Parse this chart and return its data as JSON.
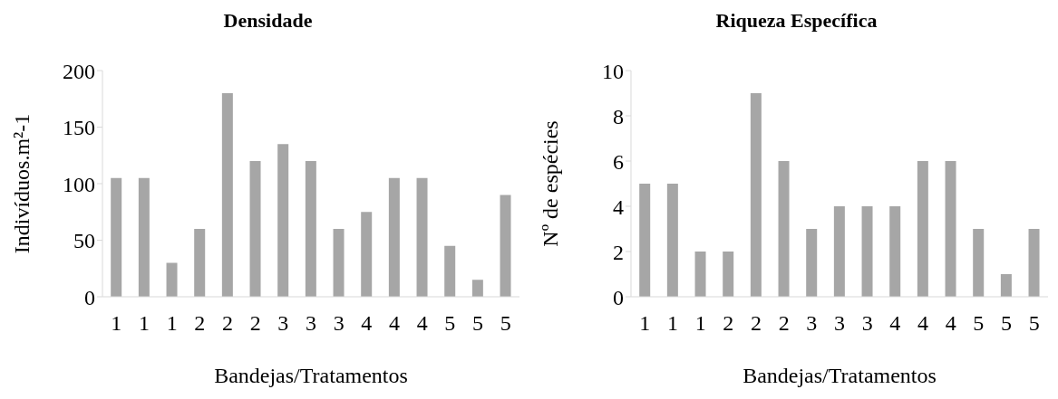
{
  "chart_data": [
    {
      "type": "bar",
      "title": "Densidade",
      "xlabel": "Bandejas/Tratamentos",
      "ylabel": "Indivíduos.m²-1",
      "categories": [
        "1",
        "1",
        "1",
        "2",
        "2",
        "2",
        "3",
        "3",
        "3",
        "4",
        "4",
        "4",
        "5",
        "5",
        "5"
      ],
      "values": [
        105,
        105,
        30,
        60,
        180,
        120,
        135,
        120,
        60,
        75,
        105,
        105,
        45,
        15,
        90
      ],
      "color": "#a6a6a6",
      "ylim": [
        0,
        200
      ],
      "yticks": [
        0,
        50,
        100,
        150,
        200
      ]
    },
    {
      "type": "bar",
      "title": "Riqueza Específica",
      "xlabel": "Bandejas/Tratamentos",
      "ylabel": "Nº de espécies",
      "categories": [
        "1",
        "1",
        "1",
        "2",
        "2",
        "2",
        "3",
        "3",
        "3",
        "4",
        "4",
        "4",
        "5",
        "5",
        "5"
      ],
      "values": [
        5,
        5,
        2,
        2,
        9,
        6,
        3,
        4,
        4,
        4,
        6,
        6,
        3,
        1,
        3
      ],
      "color": "#a6a6a6",
      "ylim": [
        0,
        10
      ],
      "yticks": [
        0,
        2,
        4,
        6,
        8,
        10
      ]
    }
  ]
}
